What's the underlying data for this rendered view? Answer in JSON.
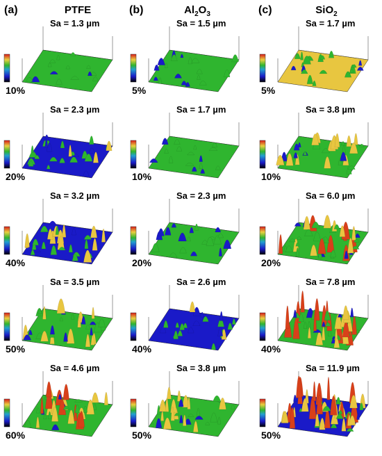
{
  "panels": [
    {
      "letter": "(a)",
      "title": "PTFE"
    },
    {
      "letter": "(b)",
      "title_main": "Al",
      "title_sub1": "2",
      "title_mid": "O",
      "title_sub2": "3"
    },
    {
      "letter": "(c)",
      "title_main": "SiO",
      "title_sub1": "2"
    }
  ],
  "rows": [
    [
      {
        "sa": "Sa = 1.3 µm",
        "pct": "10%"
      },
      {
        "sa": "Sa = 1.5 µm",
        "pct": "5%"
      },
      {
        "sa": "Sa = 1.7 µm",
        "pct": "5%"
      }
    ],
    [
      {
        "sa": "Sa = 2.3 µm",
        "pct": "20%"
      },
      {
        "sa": "Sa = 1.7 µm",
        "pct": "10%"
      },
      {
        "sa": "Sa = 3.8 µm",
        "pct": "10%"
      }
    ],
    [
      {
        "sa": "Sa = 3.2 µm",
        "pct": "40%"
      },
      {
        "sa": "Sa = 2.3 µm",
        "pct": "20%"
      },
      {
        "sa": "Sa = 6.0 µm",
        "pct": "20%"
      }
    ],
    [
      {
        "sa": "Sa = 3.5 µm",
        "pct": "50%"
      },
      {
        "sa": "Sa = 2.6 µm",
        "pct": "40%"
      },
      {
        "sa": "Sa = 7.8 µm",
        "pct": "40%"
      }
    ],
    [
      {
        "sa": "Sa = 4.6 µm",
        "pct": "60%"
      },
      {
        "sa": "Sa = 3.8 µm",
        "pct": "50%"
      },
      {
        "sa": "Sa = 11.9 µm",
        "pct": "50%"
      }
    ]
  ],
  "colors": {
    "low": "#1a1ac8",
    "mid": "#2fb52f",
    "high": "#e8c640",
    "peak": "#d8401a",
    "frame": "#555555"
  }
}
